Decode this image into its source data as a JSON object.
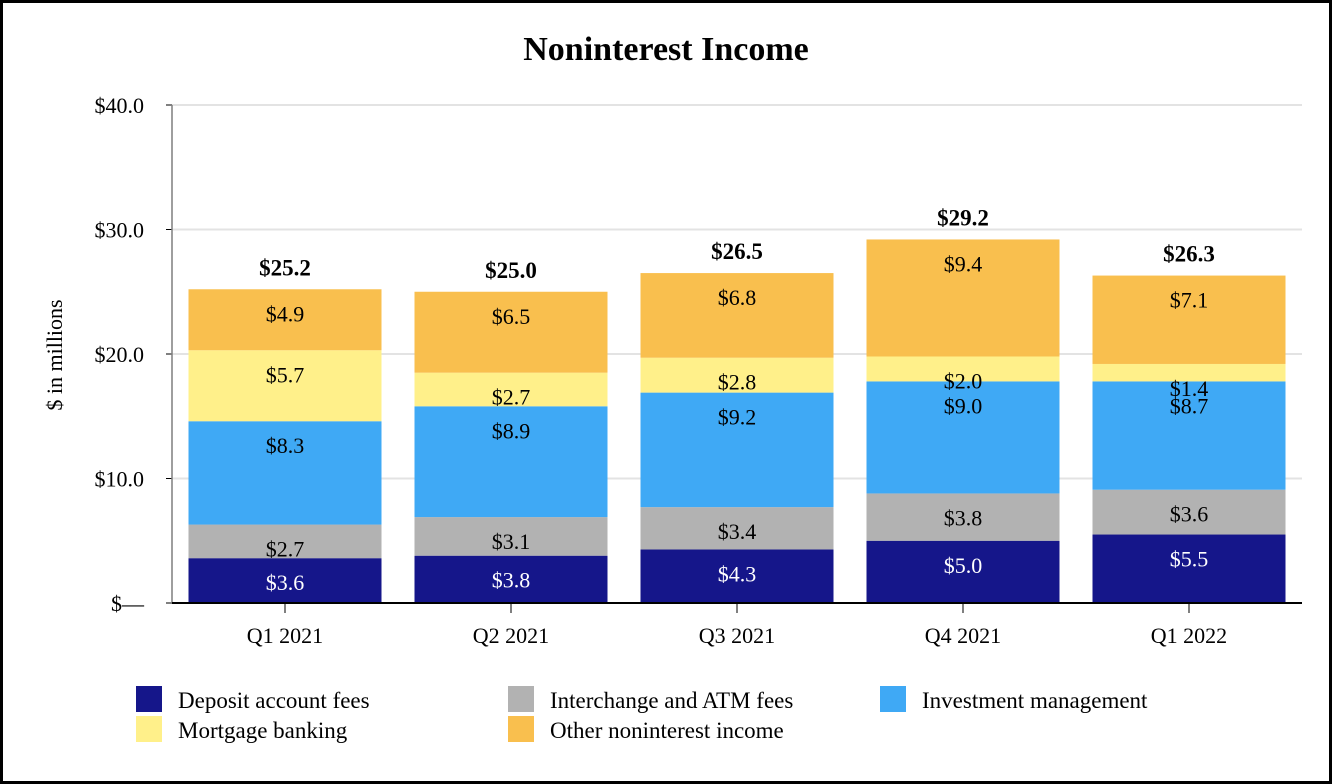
{
  "chart_data": {
    "type": "bar",
    "stacked": true,
    "title": "Noninterest Income",
    "ylabel": "$ in millions",
    "xlabel": "",
    "ylim": [
      0,
      40
    ],
    "yticks": [
      0,
      10,
      20,
      30,
      40
    ],
    "ytick_labels": [
      "$—",
      "$10.0",
      "$20.0",
      "$30.0",
      "$40.0"
    ],
    "grid": true,
    "legend_position": "bottom",
    "categories": [
      "Q1 2021",
      "Q2 2021",
      "Q3 2021",
      "Q4 2021",
      "Q1 2022"
    ],
    "series": [
      {
        "name": "Deposit account fees",
        "color": "#15168a",
        "label_color": "#ffffff",
        "values": [
          3.6,
          3.8,
          4.3,
          5.0,
          5.5
        ],
        "labels": [
          "$3.6",
          "$3.8",
          "$4.3",
          "$5.0",
          "$5.5"
        ]
      },
      {
        "name": "Interchange and ATM fees",
        "color": "#b2b2b2",
        "label_color": "#000000",
        "values": [
          2.7,
          3.1,
          3.4,
          3.8,
          3.6
        ],
        "labels": [
          "$2.7",
          "$3.1",
          "$3.4",
          "$3.8",
          "$3.6"
        ]
      },
      {
        "name": "Investment management",
        "color": "#3fa9f5",
        "label_color": "#000000",
        "values": [
          8.3,
          8.9,
          9.2,
          9.0,
          8.7
        ],
        "labels": [
          "$8.3",
          "$8.9",
          "$9.2",
          "$9.0",
          "$8.7"
        ]
      },
      {
        "name": "Mortgage banking",
        "color": "#fff08a",
        "label_color": "#000000",
        "values": [
          5.7,
          2.7,
          2.8,
          2.0,
          1.4
        ],
        "labels": [
          "$5.7",
          "$2.7",
          "$2.8",
          "$2.0",
          "$1.4"
        ]
      },
      {
        "name": "Other noninterest income",
        "color": "#f9bf4e",
        "label_color": "#000000",
        "values": [
          4.9,
          6.5,
          6.8,
          9.4,
          7.1
        ],
        "labels": [
          "$4.9",
          "$6.5",
          "$6.8",
          "$9.4",
          "$7.1"
        ]
      }
    ],
    "totals": [
      25.2,
      25.0,
      26.5,
      29.2,
      26.3
    ],
    "total_labels": [
      "$25.2",
      "$25.0",
      "$26.5",
      "$29.2",
      "$26.3"
    ]
  }
}
